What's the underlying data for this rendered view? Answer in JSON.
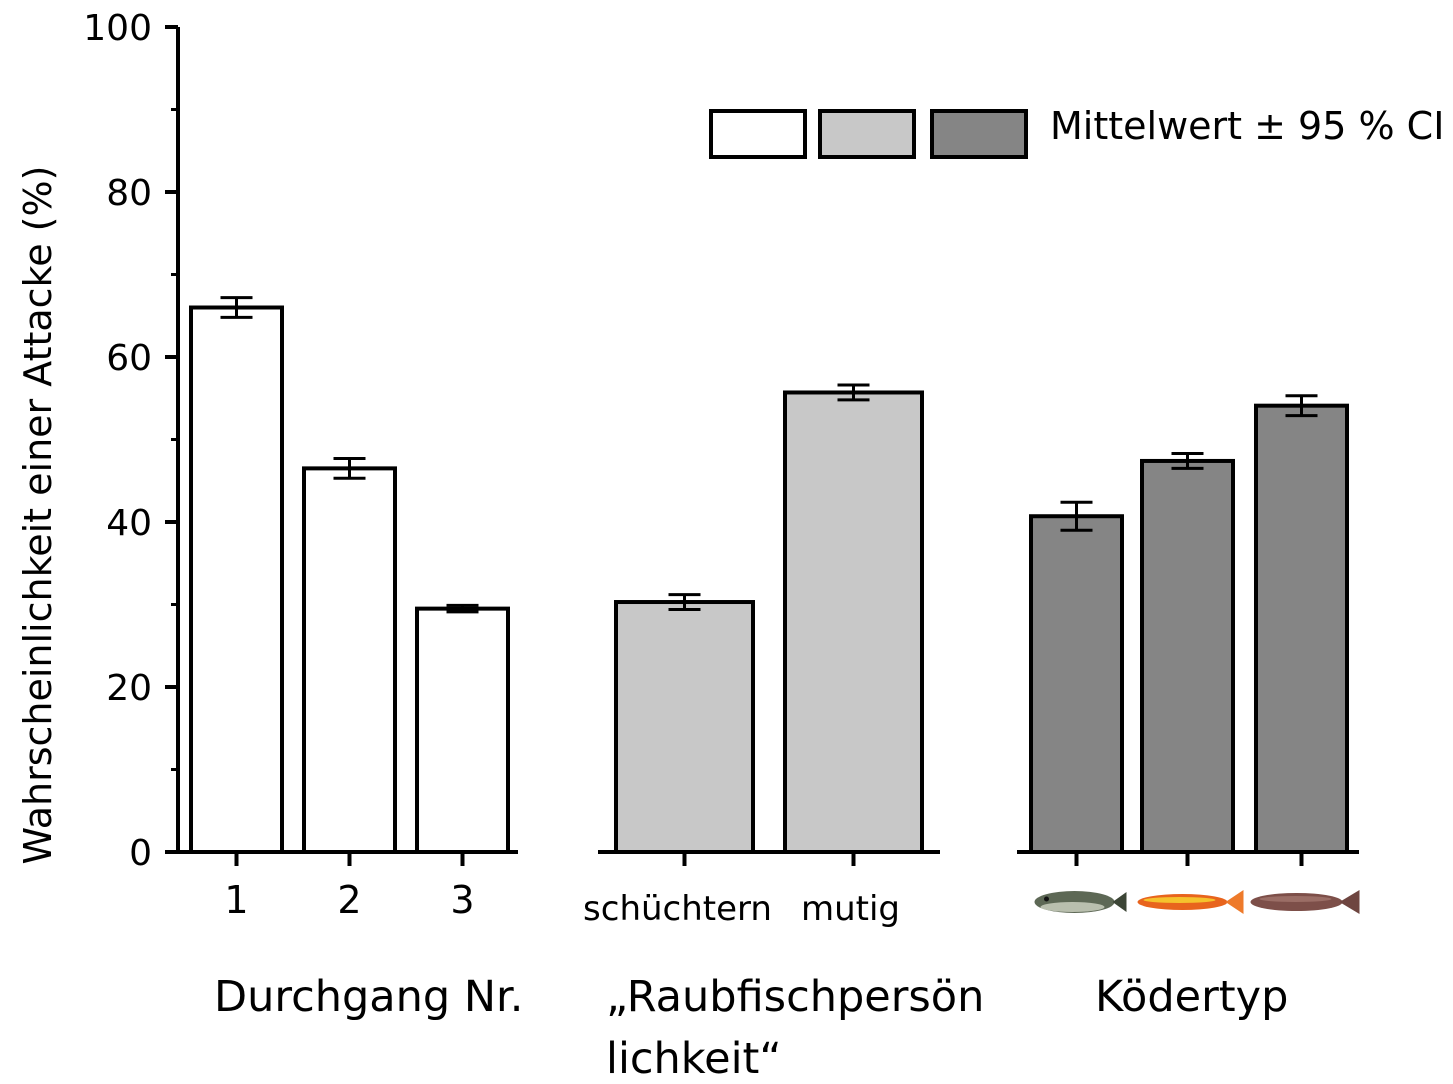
{
  "chart_data": {
    "type": "bar",
    "ylabel": "Wahrscheinlichkeit einer Attacke   (%)",
    "ylim": [
      0,
      100
    ],
    "yticks": [
      "0",
      "20",
      "40",
      "60",
      "80",
      "100"
    ],
    "legend": {
      "label": "Mittelwert ± 95 % CI",
      "placement": "top-right"
    },
    "grid": false,
    "groups": [
      {
        "xlabel": "Durchgang Nr.",
        "fill": "#ffffff",
        "categories": [
          "1",
          "2",
          "3"
        ],
        "values": [
          66,
          46.5,
          29.5
        ],
        "ci": [
          1.2,
          1.2,
          0.4
        ]
      },
      {
        "xlabel": "„Raubfischpersön lichkeit“",
        "fill": "#c8c8c8",
        "categories": [
          "schüchtern",
          "mutig"
        ],
        "values": [
          30.3,
          55.7
        ],
        "ci": [
          0.9,
          0.9
        ]
      },
      {
        "xlabel": "Ködertyp",
        "fill": "#858585",
        "categories": [
          "fish-bait-icon",
          "orange-softbait-icon",
          "brown-softbait-icon"
        ],
        "values": [
          40.7,
          47.4,
          54.1
        ],
        "ci": [
          1.7,
          0.9,
          1.2
        ]
      }
    ]
  },
  "xlabels": {
    "g1": "Durchgang Nr.",
    "g2_line1": "„Raubfischpersön",
    "g2_line2": "lichkeit“",
    "g3": "Ködertyp"
  }
}
